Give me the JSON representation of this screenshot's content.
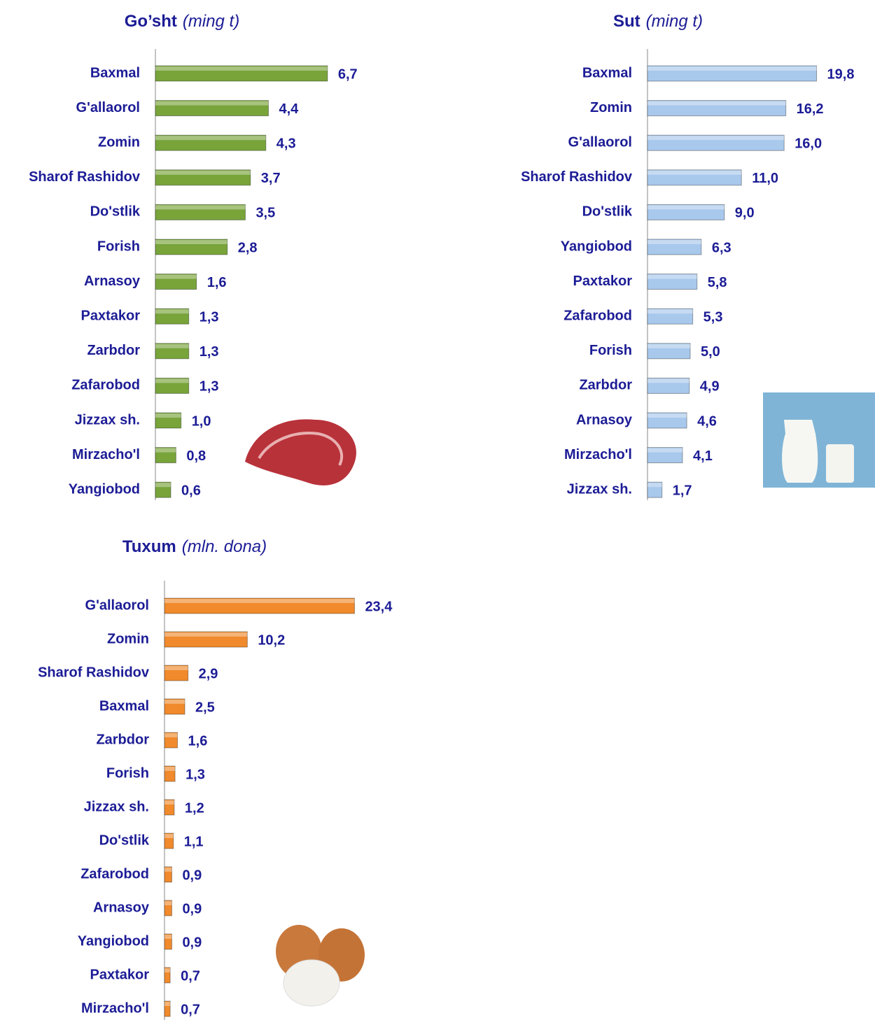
{
  "chart_data": [
    {
      "type": "bar",
      "title": "Go’sht",
      "unit": "(ming t)",
      "color": "#78a43a",
      "categories": [
        "Baxmal",
        "G'allaorol",
        "Zomin",
        "Sharof Rashidov",
        "Do'stlik",
        "Forish",
        "Arnasoy",
        "Paxtakor",
        "Zarbdor",
        "Zafarobod",
        "Jizzax sh.",
        "Mirzacho'l",
        "Yangiobod"
      ],
      "values": [
        6.7,
        4.4,
        4.3,
        3.7,
        3.5,
        2.8,
        1.6,
        1.3,
        1.3,
        1.3,
        1.0,
        0.8,
        0.6
      ],
      "value_labels": [
        "6,7",
        "4,4",
        "4,3",
        "3,7",
        "3,5",
        "2,8",
        "1,6",
        "1,3",
        "1,3",
        "1,3",
        "1,0",
        "0,8",
        "0,6"
      ]
    },
    {
      "type": "bar",
      "title": "Sut",
      "unit": "(ming t)",
      "color": "#a8c8ec",
      "categories": [
        "Baxmal",
        "Zomin",
        "G'allaorol",
        "Sharof Rashidov",
        "Do'stlik",
        "Yangiobod",
        "Paxtakor",
        "Zafarobod",
        "Forish",
        "Zarbdor",
        "Arnasoy",
        "Mirzacho'l",
        "Jizzax sh."
      ],
      "values": [
        19.8,
        16.2,
        16.0,
        11.0,
        9.0,
        6.3,
        5.8,
        5.3,
        5.0,
        4.9,
        4.6,
        4.1,
        1.7
      ],
      "value_labels": [
        "19,8",
        "16,2",
        "16,0",
        "11,0",
        "9,0",
        "6,3",
        "5,8",
        "5,3",
        "5,0",
        "4,9",
        "4,6",
        "4,1",
        "1,7"
      ]
    },
    {
      "type": "bar",
      "title": "Tuxum",
      "unit": "(mln. dona)",
      "color": "#f08a2c",
      "categories": [
        "G'allaorol",
        "Zomin",
        "Sharof Rashidov",
        "Baxmal",
        "Zarbdor",
        "Forish",
        "Jizzax sh.",
        "Do'stlik",
        "Zafarobod",
        "Arnasoy",
        "Yangiobod",
        "Paxtakor",
        "Mirzacho'l"
      ],
      "values": [
        23.4,
        10.2,
        2.9,
        2.5,
        1.6,
        1.3,
        1.2,
        1.1,
        0.9,
        0.9,
        0.9,
        0.7,
        0.7
      ],
      "value_labels": [
        "23,4",
        "10,2",
        "2,9",
        "2,5",
        "1,6",
        "1,3",
        "1,2",
        "1,1",
        "0,9",
        "0,9",
        "0,9",
        "0,7",
        "0,7"
      ]
    }
  ]
}
